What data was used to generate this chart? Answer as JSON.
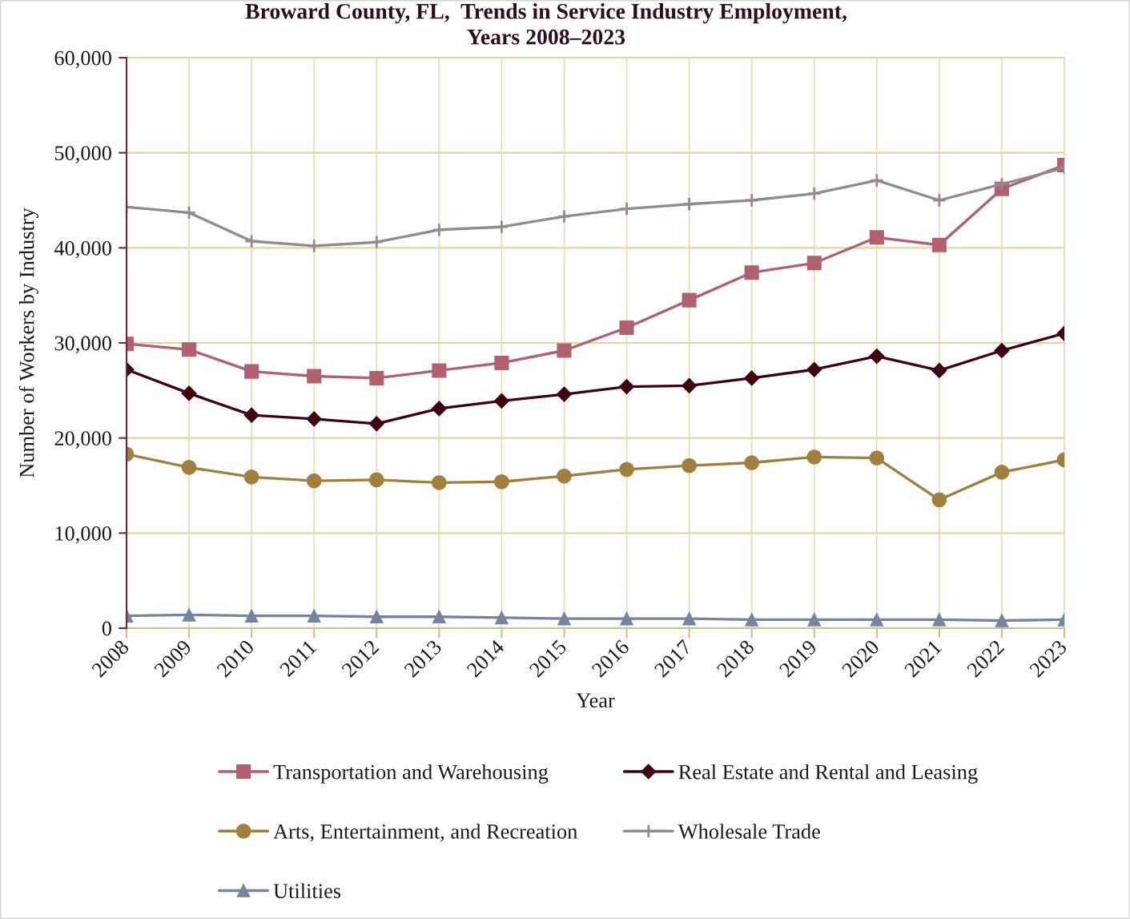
{
  "chart_data": {
    "type": "line",
    "title": "Broward County, FL,  Trends in Service Industry Employment,\nYears 2008–2023",
    "xlabel": "Year",
    "ylabel": "Number of Workers by Industry",
    "categories": [
      "2008",
      "2009",
      "2010",
      "2011",
      "2012",
      "2013",
      "2014",
      "2015",
      "2016",
      "2017",
      "2018",
      "2019",
      "2020",
      "2021",
      "2022",
      "2023"
    ],
    "ylim": [
      0,
      60000
    ],
    "yticks": [
      0,
      {
        "value": 10000,
        "label": "10,000"
      },
      {
        "value": 20000,
        "label": "20,000"
      },
      {
        "value": 30000,
        "label": "30,000"
      },
      {
        "value": 40000,
        "label": "40,000"
      },
      {
        "value": 50000,
        "label": "50,000"
      },
      {
        "value": 60000,
        "label": "60,000"
      }
    ],
    "grid": true,
    "legend": "bottom",
    "line_style": "solid",
    "series": [
      {
        "name": "Transportation and Warehousing",
        "color": "#b0606f",
        "marker": "square",
        "values": [
          29900,
          29300,
          27000,
          26500,
          26300,
          27100,
          27900,
          29200,
          31600,
          34500,
          37400,
          38400,
          41100,
          40300,
          46200,
          48700
        ]
      },
      {
        "name": "Real Estate and Rental and Leasing",
        "color": "#3f0012",
        "marker": "diamond",
        "values": [
          27200,
          24700,
          22400,
          22000,
          21500,
          23100,
          23900,
          24600,
          25400,
          25500,
          26300,
          27200,
          28600,
          27100,
          29200,
          31000
        ]
      },
      {
        "name": "Arts, Entertainment, and Recreation",
        "color": "#a0803e",
        "marker": "circle",
        "values": [
          18300,
          16900,
          15900,
          15500,
          15600,
          15300,
          15400,
          16000,
          16700,
          17100,
          17400,
          18000,
          17900,
          13500,
          16400,
          17700
        ]
      },
      {
        "name": "Wholesale Trade",
        "color": "#958a8b",
        "marker": "cross",
        "values": [
          44300,
          43700,
          40700,
          40200,
          40600,
          41900,
          42200,
          43300,
          44100,
          44600,
          45000,
          45700,
          47100,
          45000,
          46700,
          48400
        ]
      },
      {
        "name": "Utilities",
        "color": "#74859f",
        "marker": "triangle",
        "values": [
          1300,
          1400,
          1300,
          1300,
          1200,
          1200,
          1100,
          1000,
          1000,
          1000,
          900,
          900,
          900,
          900,
          800,
          900
        ]
      }
    ]
  }
}
